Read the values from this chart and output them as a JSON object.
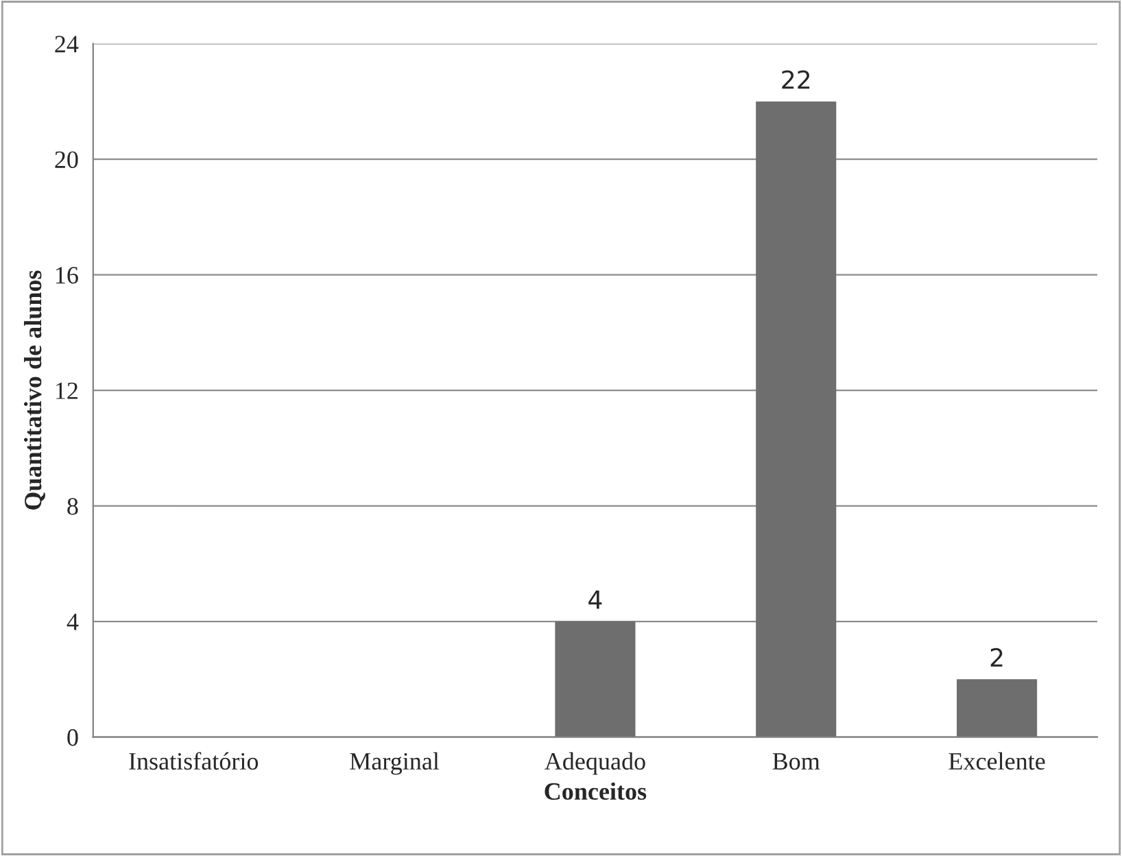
{
  "chart_data": {
    "type": "bar",
    "xlabel": "Conceitos",
    "ylabel": "Quantitativo de alunos",
    "categories": [
      "Insatisfatório",
      "Marginal",
      "Adequado",
      "Bom",
      "Excelente"
    ],
    "values": [
      0,
      0,
      4,
      22,
      2
    ],
    "color": "#6e6e6e",
    "value_labels": [
      null,
      null,
      "4",
      "22",
      "2"
    ],
    "ylim": [
      0,
      24
    ],
    "yticks": [
      0,
      4,
      8,
      12,
      16,
      20,
      24
    ],
    "grid": "y",
    "legend": false
  }
}
